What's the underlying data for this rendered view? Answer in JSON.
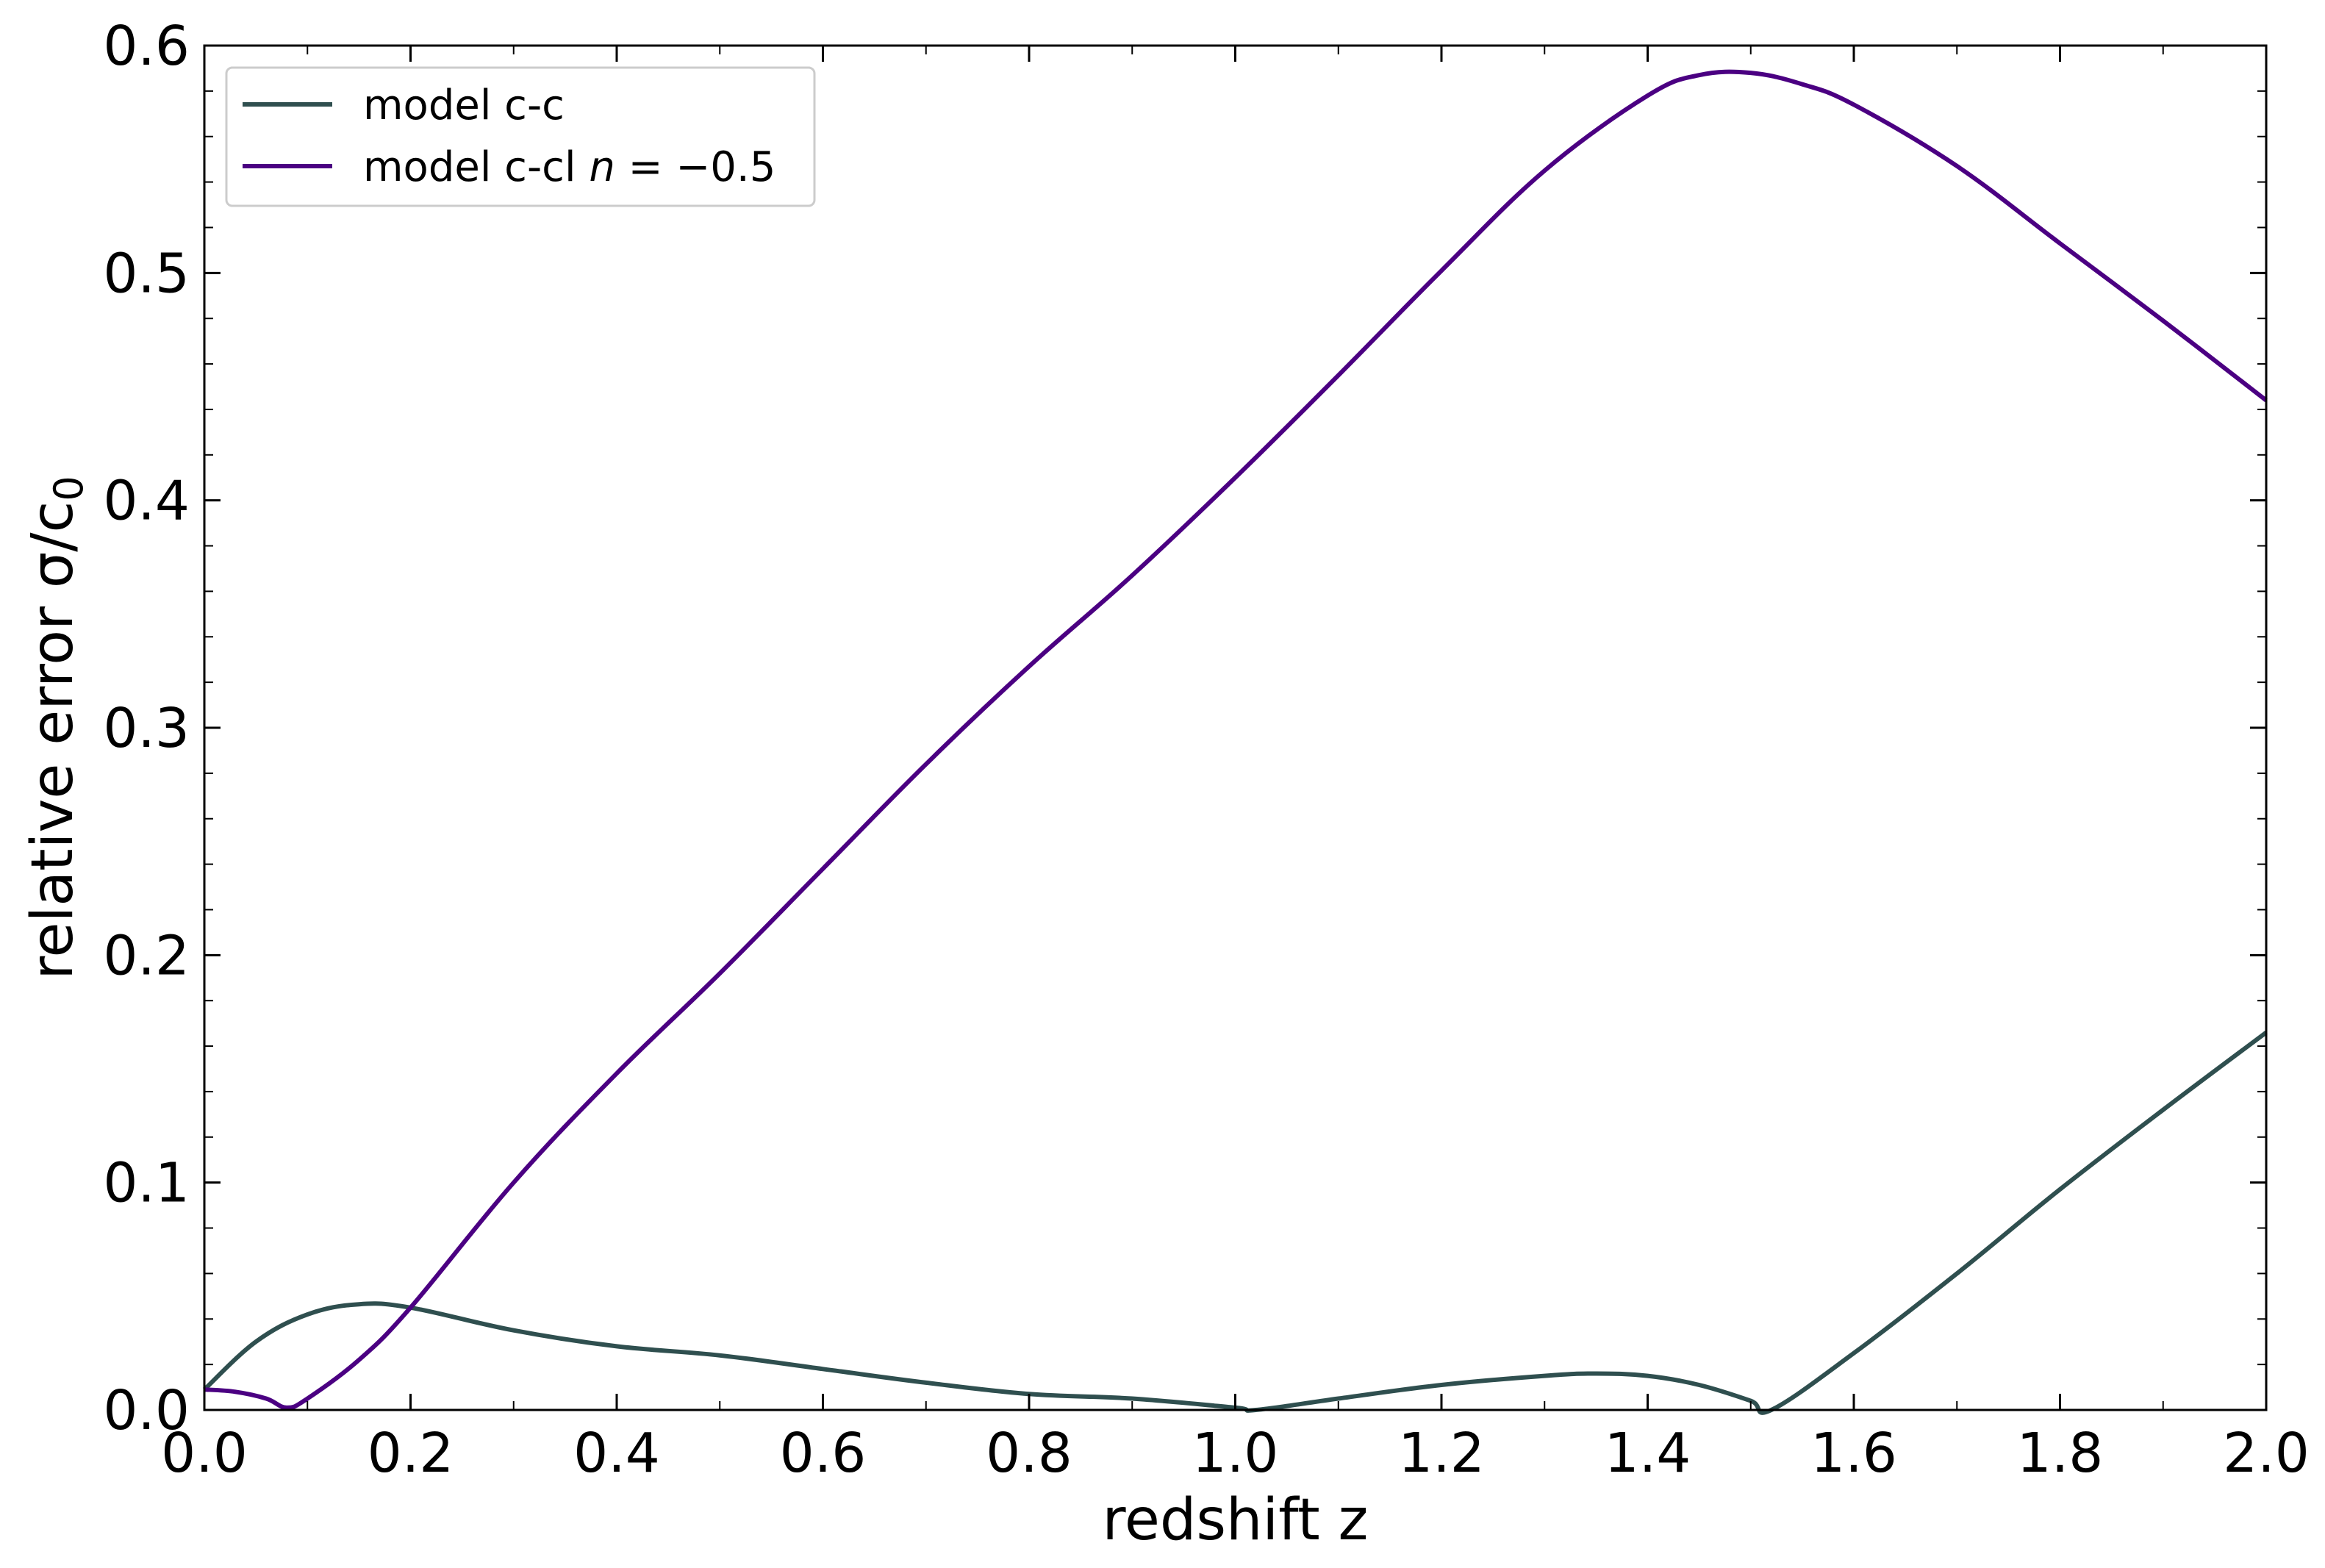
{
  "chart_data": {
    "type": "line",
    "xlabel": "redshift z",
    "ylabel_text": "relative error σ/c",
    "ylabel_sub": "0",
    "xlim": [
      0.0,
      2.0
    ],
    "ylim": [
      0.0,
      0.6
    ],
    "x_ticks": [
      "0.0",
      "0.2",
      "0.4",
      "0.6",
      "0.8",
      "1.0",
      "1.2",
      "1.4",
      "1.6",
      "1.8",
      "2.0"
    ],
    "y_ticks": [
      "0.0",
      "0.1",
      "0.2",
      "0.3",
      "0.4",
      "0.5",
      "0.6"
    ],
    "x_tick_values": [
      0.0,
      0.2,
      0.4,
      0.6,
      0.8,
      1.0,
      1.2,
      1.4,
      1.6,
      1.8,
      2.0
    ],
    "y_tick_values": [
      0.0,
      0.1,
      0.2,
      0.3,
      0.4,
      0.5,
      0.6
    ],
    "grid": false,
    "legend_position": "top-left",
    "legend": {
      "entry1": "model c-c",
      "entry2_prefix": "model c-cl ",
      "entry2_var": "n",
      "entry2_rest": " = −0.5"
    },
    "series": [
      {
        "name": "model c-c",
        "color": "#2f4f4f",
        "x": [
          0.0,
          0.05,
          0.1,
          0.15,
          0.2,
          0.3,
          0.4,
          0.5,
          0.6,
          0.7,
          0.8,
          0.9,
          1.0,
          1.02,
          1.1,
          1.2,
          1.3,
          1.35,
          1.4,
          1.45,
          1.5,
          1.52,
          1.6,
          1.7,
          1.8,
          1.9,
          2.0
        ],
        "y": [
          0.009,
          0.03,
          0.042,
          0.0465,
          0.045,
          0.035,
          0.028,
          0.024,
          0.018,
          0.012,
          0.007,
          0.005,
          0.001,
          0.0,
          0.005,
          0.011,
          0.015,
          0.016,
          0.015,
          0.011,
          0.004,
          0.0,
          0.025,
          0.06,
          0.097,
          0.132,
          0.166
        ]
      },
      {
        "name": "model c-cl n = −0.5",
        "color": "#4b0082",
        "x": [
          0.0,
          0.03,
          0.06,
          0.08,
          0.1,
          0.15,
          0.2,
          0.3,
          0.4,
          0.5,
          0.6,
          0.7,
          0.8,
          0.9,
          1.0,
          1.1,
          1.2,
          1.3,
          1.4,
          1.45,
          1.5,
          1.55,
          1.6,
          1.7,
          1.8,
          1.9,
          2.0
        ],
        "y": [
          0.009,
          0.008,
          0.005,
          0.001,
          0.005,
          0.022,
          0.045,
          0.1,
          0.148,
          0.192,
          0.238,
          0.284,
          0.327,
          0.367,
          0.41,
          0.455,
          0.501,
          0.545,
          0.578,
          0.587,
          0.588,
          0.583,
          0.574,
          0.547,
          0.513,
          0.479,
          0.444
        ]
      }
    ]
  }
}
